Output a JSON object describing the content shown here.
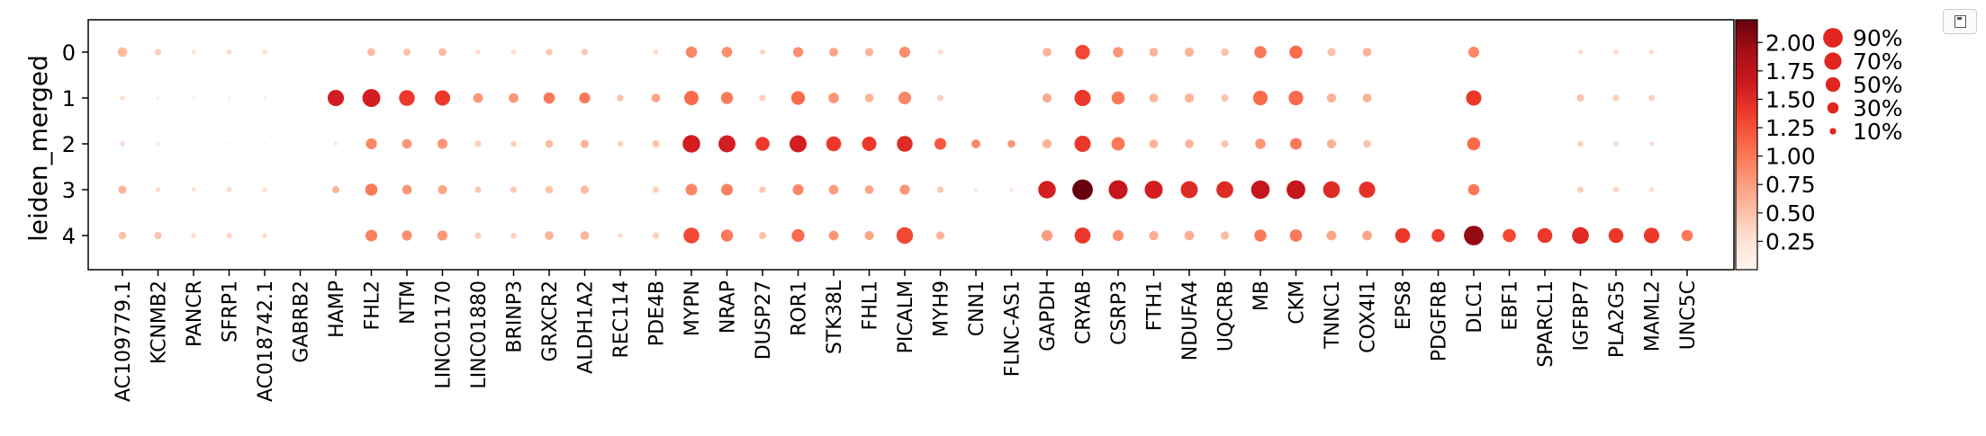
{
  "toolbar": {
    "save_icon": "save-icon"
  },
  "chart_data": {
    "type": "dotplot",
    "ylabel": "leiden_merged",
    "groups": [
      "0",
      "1",
      "2",
      "3",
      "4"
    ],
    "genes": [
      "AC109779.1",
      "KCNMB2",
      "PANCR",
      "SFRP1",
      "AC018742.1",
      "GABRB2",
      "HAMP",
      "FHL2",
      "NTM",
      "LINC01170",
      "LINC01880",
      "BRINP3",
      "GRXCR2",
      "ALDH1A2",
      "REC114",
      "PDE4B",
      "MYPN",
      "NRAP",
      "DUSP27",
      "ROR1",
      "STK38L",
      "FHL1",
      "PICALM",
      "MYH9",
      "CNN1",
      "FLNC-AS1",
      "GAPDH",
      "CRYAB",
      "CSRP3",
      "FTH1",
      "NDUFA4",
      "UQCRB",
      "MB",
      "CKM",
      "TNNC1",
      "COX4I1",
      "EPS8",
      "PDGFRB",
      "DLC1",
      "EBF1",
      "SPARCL1",
      "IGFBP7",
      "PLA2G5",
      "MAML2",
      "UNC5C"
    ],
    "fraction": [
      [
        0.22,
        0.1,
        0.05,
        0.07,
        0.06,
        0.0,
        0.0,
        0.15,
        0.12,
        0.15,
        0.06,
        0.06,
        0.1,
        0.1,
        0.0,
        0.07,
        0.3,
        0.26,
        0.07,
        0.24,
        0.18,
        0.16,
        0.28,
        0.07,
        0.0,
        0.0,
        0.18,
        0.5,
        0.25,
        0.18,
        0.2,
        0.14,
        0.35,
        0.4,
        0.16,
        0.18,
        0.0,
        0.0,
        0.28,
        0.0,
        0.0,
        0.06,
        0.07,
        0.06,
        0.0
      ],
      [
        0.06,
        0.03,
        0.02,
        0.02,
        0.02,
        0.0,
        0.62,
        0.75,
        0.58,
        0.55,
        0.22,
        0.22,
        0.3,
        0.28,
        0.1,
        0.18,
        0.48,
        0.34,
        0.1,
        0.44,
        0.26,
        0.18,
        0.38,
        0.1,
        0.0,
        0.0,
        0.2,
        0.62,
        0.4,
        0.18,
        0.2,
        0.12,
        0.5,
        0.5,
        0.2,
        0.18,
        0.0,
        0.0,
        0.55,
        0.0,
        0.0,
        0.12,
        0.1,
        0.09,
        0.0
      ],
      [
        0.06,
        0.03,
        0.0,
        0.02,
        0.02,
        0.0,
        0.03,
        0.28,
        0.22,
        0.24,
        0.1,
        0.08,
        0.14,
        0.16,
        0.08,
        0.12,
        0.72,
        0.68,
        0.46,
        0.68,
        0.52,
        0.48,
        0.58,
        0.32,
        0.18,
        0.14,
        0.2,
        0.62,
        0.42,
        0.18,
        0.18,
        0.12,
        0.25,
        0.32,
        0.2,
        0.14,
        0.0,
        0.0,
        0.4,
        0.0,
        0.0,
        0.08,
        0.07,
        0.05,
        0.0
      ],
      [
        0.16,
        0.06,
        0.05,
        0.07,
        0.06,
        0.0,
        0.12,
        0.35,
        0.22,
        0.2,
        0.1,
        0.1,
        0.14,
        0.16,
        0.0,
        0.1,
        0.32,
        0.32,
        0.1,
        0.28,
        0.22,
        0.18,
        0.24,
        0.1,
        0.04,
        0.04,
        0.72,
        0.98,
        0.84,
        0.76,
        0.68,
        0.66,
        0.8,
        0.82,
        0.66,
        0.62,
        0.0,
        0.0,
        0.3,
        0.0,
        0.0,
        0.1,
        0.08,
        0.06,
        0.0
      ],
      [
        0.14,
        0.12,
        0.06,
        0.08,
        0.06,
        0.0,
        0.0,
        0.32,
        0.24,
        0.24,
        0.1,
        0.08,
        0.18,
        0.18,
        0.06,
        0.1,
        0.58,
        0.34,
        0.12,
        0.38,
        0.22,
        0.2,
        0.64,
        0.16,
        0.0,
        0.0,
        0.28,
        0.6,
        0.28,
        0.2,
        0.22,
        0.16,
        0.34,
        0.36,
        0.22,
        0.22,
        0.52,
        0.4,
        0.9,
        0.4,
        0.52,
        0.66,
        0.52,
        0.56,
        0.3
      ]
    ],
    "expression": [
      [
        0.55,
        0.4,
        0.25,
        0.3,
        0.25,
        0.0,
        0.0,
        0.55,
        0.5,
        0.55,
        0.3,
        0.3,
        0.45,
        0.45,
        0.0,
        0.3,
        0.9,
        0.85,
        0.35,
        0.85,
        0.7,
        0.6,
        0.85,
        0.3,
        0.0,
        0.0,
        0.6,
        1.3,
        0.8,
        0.6,
        0.6,
        0.5,
        1.0,
        1.1,
        0.5,
        0.6,
        0.0,
        0.0,
        0.9,
        0.0,
        0.0,
        0.3,
        0.3,
        0.3,
        0.0
      ],
      [
        0.3,
        0.15,
        0.1,
        0.1,
        0.1,
        0.0,
        1.6,
        1.6,
        1.4,
        1.4,
        0.8,
        0.8,
        1.0,
        1.0,
        0.5,
        0.7,
        1.1,
        1.0,
        0.4,
        1.1,
        0.8,
        0.6,
        0.9,
        0.4,
        0.0,
        0.0,
        0.65,
        1.4,
        1.0,
        0.6,
        0.6,
        0.5,
        1.1,
        1.1,
        0.6,
        0.6,
        0.0,
        0.0,
        1.4,
        0.0,
        0.0,
        0.5,
        0.4,
        0.4,
        0.0
      ],
      [
        0.3,
        0.15,
        0.0,
        0.1,
        0.1,
        0.0,
        0.2,
        0.9,
        0.8,
        0.8,
        0.4,
        0.4,
        0.55,
        0.6,
        0.4,
        0.5,
        1.6,
        1.6,
        1.4,
        1.6,
        1.4,
        1.4,
        1.5,
        1.2,
        0.9,
        0.8,
        0.6,
        1.4,
        1.0,
        0.6,
        0.6,
        0.5,
        0.8,
        1.0,
        0.6,
        0.5,
        0.0,
        0.0,
        1.1,
        0.0,
        0.0,
        0.4,
        0.3,
        0.3,
        0.0
      ],
      [
        0.6,
        0.3,
        0.25,
        0.3,
        0.25,
        0.0,
        0.6,
        1.0,
        0.8,
        0.7,
        0.45,
        0.45,
        0.5,
        0.55,
        0.0,
        0.4,
        0.9,
        0.95,
        0.45,
        0.9,
        0.75,
        0.7,
        0.8,
        0.45,
        0.2,
        0.2,
        1.6,
        2.2,
        1.7,
        1.6,
        1.5,
        1.5,
        1.7,
        1.7,
        1.5,
        1.45,
        0.0,
        0.0,
        1.0,
        0.0,
        0.0,
        0.4,
        0.35,
        0.3,
        0.0
      ],
      [
        0.5,
        0.5,
        0.3,
        0.35,
        0.3,
        0.0,
        0.0,
        0.95,
        0.85,
        0.8,
        0.4,
        0.4,
        0.6,
        0.6,
        0.3,
        0.4,
        1.3,
        1.0,
        0.5,
        1.1,
        0.8,
        0.7,
        1.3,
        0.6,
        0.0,
        0.0,
        0.75,
        1.4,
        0.85,
        0.65,
        0.65,
        0.55,
        1.0,
        1.0,
        0.7,
        0.7,
        1.4,
        1.35,
        2.0,
        1.3,
        1.4,
        1.5,
        1.4,
        1.4,
        1.0
      ]
    ],
    "colorbar": {
      "min": 0.0,
      "max": 2.2,
      "ticks": [
        "2.00",
        "1.75",
        "1.50",
        "1.25",
        "1.00",
        "0.75",
        "0.50",
        "0.25"
      ],
      "tick_values": [
        2.0,
        1.75,
        1.5,
        1.25,
        1.0,
        0.75,
        0.5,
        0.25
      ],
      "cmap": [
        "#fff5f0",
        "#fee0d2",
        "#fcbba1",
        "#fc9272",
        "#fb6a4a",
        "#ef3b2c",
        "#cb181d",
        "#a50f15",
        "#67000d"
      ]
    },
    "size_legend": {
      "labels": [
        "90%",
        "70%",
        "50%",
        "30%",
        "10%"
      ],
      "fractions": [
        0.9,
        0.7,
        0.5,
        0.3,
        0.1
      ]
    },
    "grid": false,
    "legend_position": "right"
  }
}
